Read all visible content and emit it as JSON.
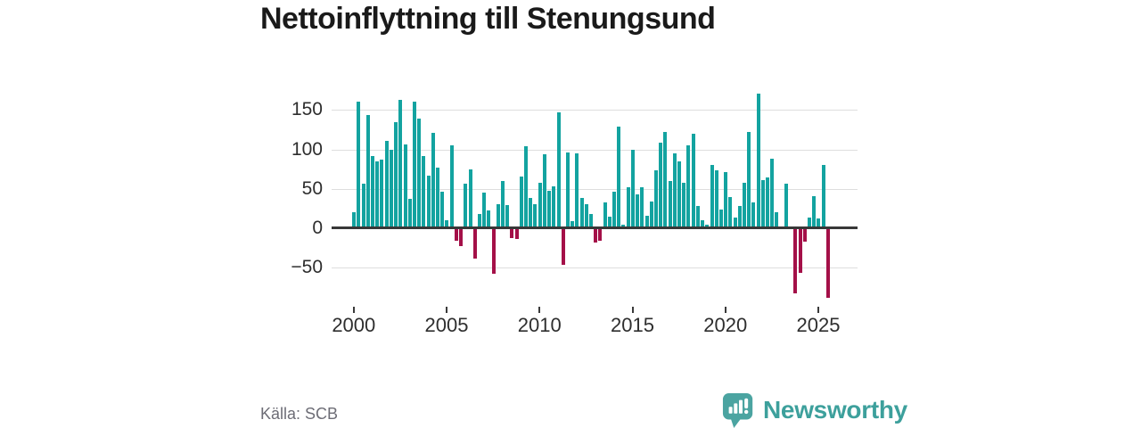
{
  "header": {
    "title": "Nettoinflyttning till Stenungsund"
  },
  "source": {
    "label": "Källa: SCB"
  },
  "branding": {
    "name": "Newsworthy",
    "icon": "newsworthy-speech-bubble-chart-icon",
    "text_color": "#3da09c",
    "icon_color": "#4ba4a1"
  },
  "chart_data": {
    "type": "bar",
    "title": "Nettoinflyttning till Stenungsund",
    "frequency": "quarterly",
    "start_period": "2000Q1",
    "end_period": "2025Q3",
    "values": [
      20,
      160,
      56,
      144,
      92,
      85,
      87,
      111,
      99,
      135,
      163,
      106,
      37,
      160,
      139,
      91,
      67,
      121,
      77,
      46,
      10,
      105,
      -16,
      -23,
      57,
      75,
      -38,
      18,
      45,
      23,
      -58,
      31,
      60,
      29,
      -12,
      -14,
      66,
      104,
      38,
      30,
      58,
      94,
      47,
      53,
      147,
      -46,
      96,
      9,
      95,
      38,
      30,
      18,
      -18,
      -16,
      33,
      15,
      46,
      129,
      5,
      52,
      100,
      43,
      52,
      16,
      34,
      73,
      108,
      122,
      60,
      95,
      85,
      58,
      105,
      120,
      28,
      10,
      4,
      80,
      73,
      24,
      71,
      40,
      14,
      28,
      58,
      122,
      33,
      171,
      61,
      64,
      88,
      20,
      2,
      56,
      1,
      -82,
      -57,
      -17,
      14,
      41,
      12,
      80,
      -88
    ],
    "x_tick_labels": [
      "2000",
      "2005",
      "2010",
      "2015",
      "2020",
      "2025"
    ],
    "y_ticks": [
      150,
      100,
      50,
      0,
      -50
    ],
    "y_tick_labels": [
      "150",
      "100",
      "50",
      "0",
      "−50"
    ],
    "ylim": [
      -95,
      178
    ],
    "grid": true,
    "legend": "none",
    "positive_color": "#13a3a0",
    "negative_color": "#a41048",
    "axis_color": "#383838",
    "grid_color": "#dedede",
    "label_color": "#2e2e2e"
  }
}
